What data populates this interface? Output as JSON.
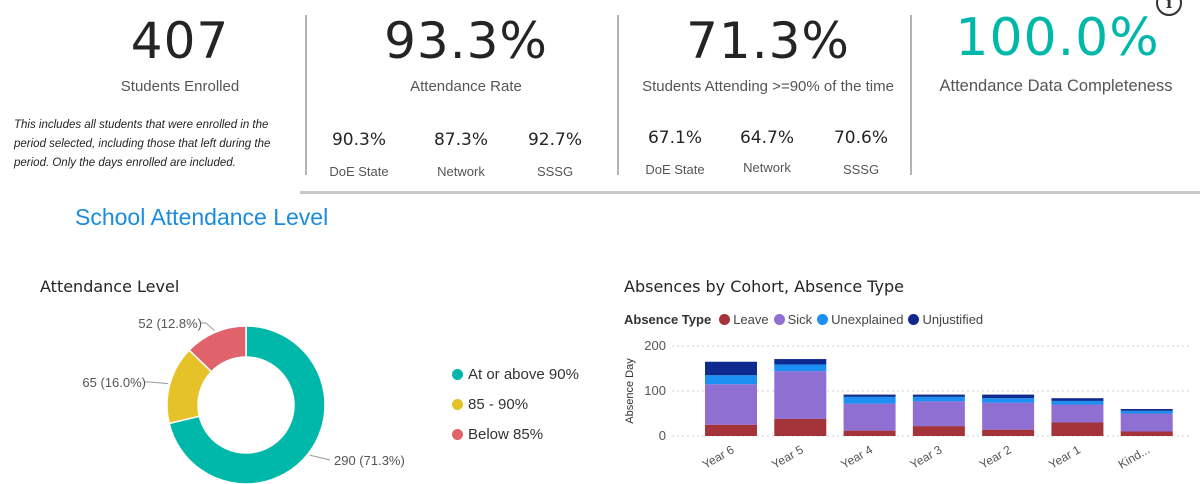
{
  "kpis": {
    "enrolled": {
      "value": "407",
      "label": "Students Enrolled"
    },
    "attendance_rate": {
      "value": "93.3%",
      "label": "Attendance Rate"
    },
    "attending_90": {
      "value": "71.3%",
      "label": "Students Attending >=90% of the time"
    },
    "completeness": {
      "value": "100.0%",
      "label": "Attendance Data Completeness"
    }
  },
  "note": "This includes all students that were enrolled in the period selected, including those that left during the period. Only the days enrolled are included.",
  "attendance_rate_comparisons": [
    {
      "value": "90.3%",
      "label": "DoE State"
    },
    {
      "value": "87.3%",
      "label": "Network"
    },
    {
      "value": "92.7%",
      "label": "SSSG"
    }
  ],
  "attending_90_comparisons": [
    {
      "value": "67.1%",
      "label": "DoE State"
    },
    {
      "value": "64.7%",
      "label": "Network"
    },
    {
      "value": "70.6%",
      "label": "SSSG"
    }
  ],
  "section_title": "School Attendance Level",
  "colors": {
    "teal": "#00b8a9",
    "yellow": "#e6c229",
    "pink": "#e0636b",
    "leave": "#a4343a",
    "sick": "#8f6fd1",
    "unexplained": "#1b8ff2",
    "unjustified": "#0e2a8e",
    "accent_blue": "#1a8ce0"
  },
  "info_icon": "info-icon",
  "chart_data": [
    {
      "type": "pie",
      "title": "Attendance Level",
      "labels": [
        "At or above 90%",
        "85 - 90%",
        "Below 85%"
      ],
      "values": [
        290,
        65,
        52
      ],
      "data_labels": [
        "290 (71.3%)",
        "65 (16.0%)",
        "52 (12.8%)"
      ],
      "legend": "right"
    },
    {
      "type": "bar",
      "stacked": true,
      "title": "Absences by Cohort, Absence Type",
      "legend_title": "Absence Type",
      "legend": "top-left",
      "categories": [
        "Year 6",
        "Year 5",
        "Year 4",
        "Year 3",
        "Year 2",
        "Year 1",
        "Kind..."
      ],
      "ylabel": "Absence Day",
      "ylim": [
        0,
        200
      ],
      "yticks": [
        "0",
        "100",
        "200"
      ],
      "grid": true,
      "series": [
        {
          "name": "Leave",
          "values": [
            25,
            38,
            12,
            22,
            14,
            30,
            10
          ]
        },
        {
          "name": "Sick",
          "values": [
            90,
            106,
            60,
            55,
            60,
            40,
            40
          ]
        },
        {
          "name": "Unexplained",
          "values": [
            20,
            15,
            15,
            10,
            10,
            8,
            6
          ]
        },
        {
          "name": "Unjustified",
          "values": [
            30,
            12,
            5,
            5,
            8,
            6,
            4
          ]
        }
      ]
    }
  ]
}
